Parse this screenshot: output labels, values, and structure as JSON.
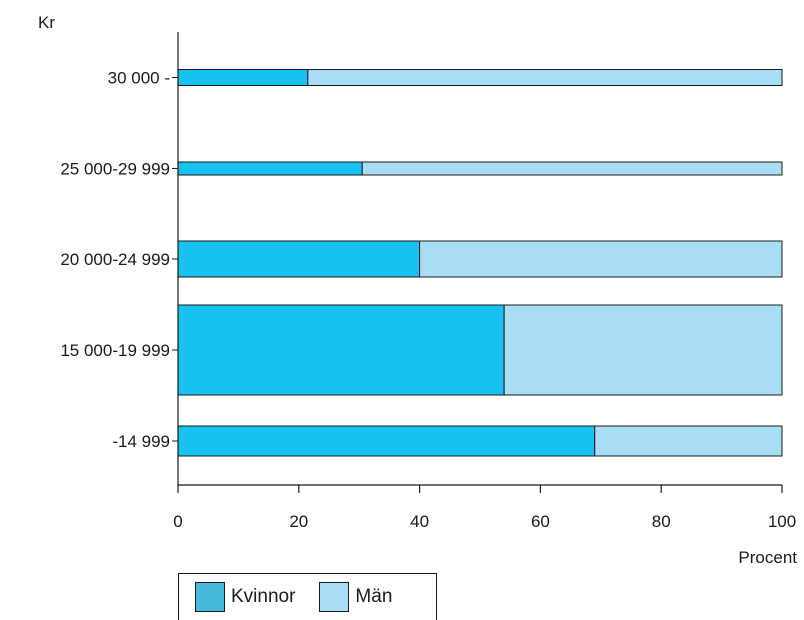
{
  "chart_data": {
    "type": "bar",
    "orientation": "horizontal",
    "stacked": true,
    "y_axis_label": "Kr",
    "x_axis_label": "Procent",
    "categories": [
      "30 000 -",
      "25 000-29 999",
      "20 000-24 999",
      "15 000-19 999",
      "-14 999"
    ],
    "series": [
      {
        "name": "Kvinnor",
        "color": "#17c1f0",
        "values": [
          21.5,
          30.5,
          40,
          54,
          69
        ]
      },
      {
        "name": "Män",
        "color": "#a9ddf6",
        "values": [
          78.5,
          69.5,
          60,
          46,
          31
        ]
      }
    ],
    "xlim": [
      0,
      100
    ],
    "x_ticks": [
      "0",
      "20",
      "40",
      "60",
      "80",
      "100"
    ],
    "grid": false,
    "legend_position": "bottom-left",
    "legend_swatch_colors": [
      "#45b9dc",
      "#a9ddf6"
    ]
  }
}
